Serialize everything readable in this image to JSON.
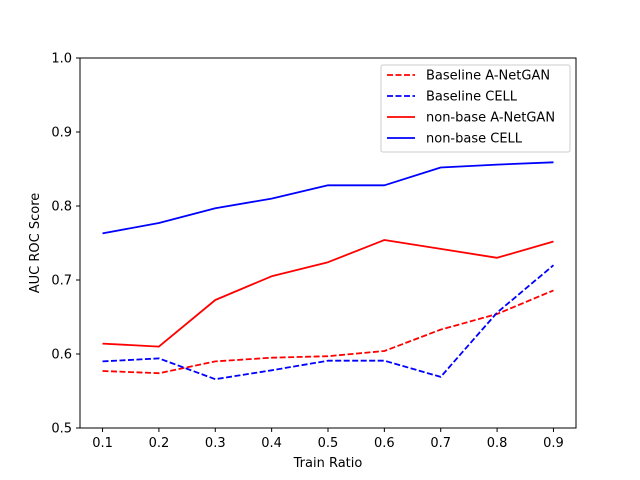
{
  "chart_data": {
    "type": "line",
    "title": "",
    "xlabel": "Train Ratio",
    "ylabel": "AUC ROC Score",
    "x": [
      0.1,
      0.2,
      0.3,
      0.4,
      0.5,
      0.6,
      0.7,
      0.8,
      0.9
    ],
    "x_ticks": [
      "0.1",
      "0.2",
      "0.3",
      "0.4",
      "0.5",
      "0.6",
      "0.7",
      "0.8",
      "0.9"
    ],
    "y_ticks": [
      "0.5",
      "0.6",
      "0.7",
      "0.8",
      "0.9",
      "1.0"
    ],
    "xlim": [
      0.06,
      0.94
    ],
    "ylim": [
      0.5,
      1.0
    ],
    "grid": false,
    "legend_position": "top-right",
    "series": [
      {
        "name": "Baseline A-NetGAN",
        "color": "#ff0000",
        "style": "dashed",
        "values": [
          0.577,
          0.574,
          0.59,
          0.595,
          0.597,
          0.604,
          0.633,
          0.654,
          0.686
        ]
      },
      {
        "name": "Baseline CELL",
        "color": "#0000ff",
        "style": "dashed",
        "values": [
          0.59,
          0.594,
          0.566,
          0.578,
          0.591,
          0.591,
          0.569,
          0.656,
          0.72
        ]
      },
      {
        "name": "non-base A-NetGAN",
        "color": "#ff0000",
        "style": "solid",
        "values": [
          0.614,
          0.61,
          0.673,
          0.705,
          0.724,
          0.754,
          0.742,
          0.73,
          0.752
        ]
      },
      {
        "name": "non-base CELL",
        "color": "#0000ff",
        "style": "solid",
        "values": [
          0.763,
          0.777,
          0.797,
          0.81,
          0.828,
          0.828,
          0.852,
          0.856,
          0.859
        ]
      }
    ]
  }
}
